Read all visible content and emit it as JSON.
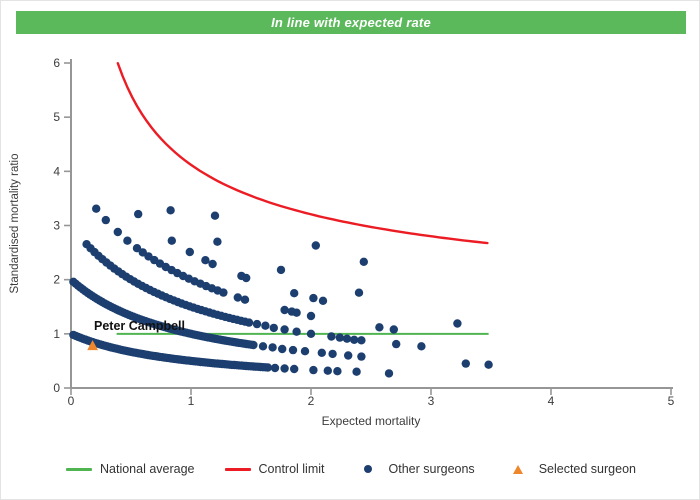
{
  "banner": {
    "text": "In line with expected rate",
    "background": "#5bb95c",
    "text_color": "#ffffff"
  },
  "selected_label": "Peter Campbell",
  "chart_data": {
    "type": "scatter",
    "title": "",
    "xlabel": "Expected mortality",
    "ylabel": "Standardised mortality ratio",
    "xlim": [
      0,
      5
    ],
    "ylim": [
      0,
      6
    ],
    "x_ticks": [
      0,
      1,
      2,
      3,
      4,
      5
    ],
    "y_ticks": [
      0,
      1,
      2,
      3,
      4,
      5,
      6
    ],
    "grid": false,
    "legend_position": "bottom",
    "national_average": {
      "label": "National average",
      "y": 1,
      "x_start": 0.38,
      "x_end": 3.48,
      "color": "#50b450"
    },
    "control_limit": {
      "label": "Control limit",
      "curve": "y = base + coeff / sqrt(x)",
      "base": 1,
      "coeff": 3.12,
      "x_start": 0.39,
      "x_end": 3.49,
      "color": "#ec1c24"
    },
    "other_surgeons": {
      "label": "Other surgeons",
      "color": "#1c3f70",
      "band_formula": "y = k / (1 + x)",
      "dense_bands": [
        {
          "k": 1,
          "x_start": 0.02,
          "x_end": 1.64,
          "step": 0.02
        },
        {
          "k": 2,
          "x_start": 0.02,
          "x_end": 1.52,
          "step": 0.02
        },
        {
          "k": 3,
          "x_start": 0.13,
          "x_end": 1.48,
          "step": 0.033
        },
        {
          "k": 4,
          "x_start": 0.55,
          "x_end": 1.28,
          "step": 0.048
        }
      ],
      "points": [
        [
          1.7,
          0.37
        ],
        [
          1.78,
          0.36
        ],
        [
          1.86,
          0.35
        ],
        [
          2.02,
          0.33
        ],
        [
          2.14,
          0.32
        ],
        [
          2.22,
          0.31
        ],
        [
          2.38,
          0.3
        ],
        [
          2.65,
          0.27
        ],
        [
          1.6,
          0.77
        ],
        [
          1.68,
          0.75
        ],
        [
          1.76,
          0.72
        ],
        [
          1.85,
          0.7
        ],
        [
          1.95,
          0.68
        ],
        [
          2.09,
          0.65
        ],
        [
          2.18,
          0.63
        ],
        [
          2.31,
          0.6
        ],
        [
          2.42,
          0.58
        ],
        [
          3.29,
          0.45
        ],
        [
          3.48,
          0.43
        ],
        [
          1.55,
          1.18
        ],
        [
          1.62,
          1.15
        ],
        [
          1.69,
          1.11
        ],
        [
          1.78,
          1.08
        ],
        [
          1.88,
          1.04
        ],
        [
          2.0,
          1.0
        ],
        [
          2.17,
          0.95
        ],
        [
          2.24,
          0.93
        ],
        [
          2.3,
          0.91
        ],
        [
          2.36,
          0.89
        ],
        [
          2.42,
          0.88
        ],
        [
          2.71,
          0.81
        ],
        [
          2.92,
          0.77
        ],
        [
          0.21,
          3.31
        ],
        [
          0.29,
          3.1
        ],
        [
          0.39,
          2.88
        ],
        [
          0.47,
          2.72
        ],
        [
          1.39,
          1.67
        ],
        [
          1.45,
          1.63
        ],
        [
          1.78,
          1.44
        ],
        [
          1.84,
          1.41
        ],
        [
          1.88,
          1.39
        ],
        [
          2.0,
          1.33
        ],
        [
          2.57,
          1.12
        ],
        [
          2.69,
          1.08
        ],
        [
          0.56,
          3.21
        ],
        [
          0.84,
          2.72
        ],
        [
          0.99,
          2.51
        ],
        [
          1.12,
          2.36
        ],
        [
          1.18,
          2.29
        ],
        [
          1.42,
          2.07
        ],
        [
          1.46,
          2.03
        ],
        [
          1.86,
          1.75
        ],
        [
          2.02,
          1.66
        ],
        [
          2.1,
          1.61
        ],
        [
          3.22,
          1.19
        ],
        [
          0.83,
          3.28
        ],
        [
          1.22,
          2.7
        ],
        [
          1.75,
          2.18
        ],
        [
          2.4,
          1.76
        ],
        [
          1.2,
          3.18
        ],
        [
          2.04,
          2.63
        ],
        [
          2.44,
          2.33
        ]
      ]
    },
    "selected_surgeon": {
      "label": "Selected surgeon",
      "name": "Peter Campbell",
      "x": 0.18,
      "y": 0.8,
      "color": "#f0862b"
    }
  },
  "legend": {
    "items": [
      {
        "label": "National average",
        "swatch": "line",
        "color": "#50b450"
      },
      {
        "label": "Control limit",
        "swatch": "line",
        "color": "#ec1c24"
      },
      {
        "label": "Other surgeons",
        "swatch": "dot",
        "color": "#1c3f70"
      },
      {
        "label": "Selected surgeon",
        "swatch": "triangle",
        "color": "#f0862b"
      }
    ]
  },
  "style": {
    "axis_color": "#969696",
    "tick_label_color": "#3c3c3c",
    "axis_title_color": "#3c3c3c"
  }
}
